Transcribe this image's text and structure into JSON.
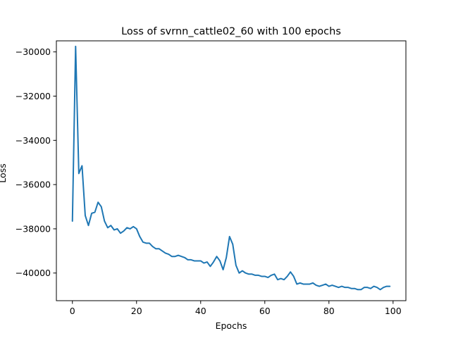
{
  "chart_data": {
    "type": "line",
    "title": "Loss of svrnn_cattle02_60 with 100 epochs",
    "xlabel": "Epochs",
    "ylabel": "Loss",
    "xlim": [
      -5,
      104
    ],
    "ylim": [
      -41250,
      -29500
    ],
    "xticks": [
      0,
      20,
      40,
      60,
      80,
      100
    ],
    "yticks": [
      -40000,
      -38000,
      -36000,
      -34000,
      -32000,
      -30000
    ],
    "xtick_labels": [
      "0",
      "20",
      "40",
      "60",
      "80",
      "100"
    ],
    "ytick_labels": [
      "−40000",
      "−38000",
      "−36000",
      "−34000",
      "−32000",
      "−30000"
    ],
    "grid": false,
    "series": [
      {
        "color": "#1f77b4",
        "x": [
          0,
          1,
          2,
          3,
          4,
          5,
          6,
          7,
          8,
          9,
          10,
          11,
          12,
          13,
          14,
          15,
          16,
          17,
          18,
          19,
          20,
          21,
          22,
          23,
          24,
          25,
          26,
          27,
          28,
          29,
          30,
          31,
          32,
          33,
          34,
          35,
          36,
          37,
          38,
          39,
          40,
          41,
          42,
          43,
          44,
          45,
          46,
          47,
          48,
          49,
          50,
          51,
          52,
          53,
          54,
          55,
          56,
          57,
          58,
          59,
          60,
          61,
          62,
          63,
          64,
          65,
          66,
          67,
          68,
          69,
          70,
          71,
          72,
          73,
          74,
          75,
          76,
          77,
          78,
          79,
          80,
          81,
          82,
          83,
          84,
          85,
          86,
          87,
          88,
          89,
          90,
          91,
          92,
          93,
          94,
          95,
          96,
          97,
          98,
          99
        ],
        "y": [
          -37650,
          -29750,
          -35500,
          -35150,
          -37400,
          -37850,
          -37300,
          -37250,
          -36800,
          -37000,
          -37650,
          -37950,
          -37850,
          -38050,
          -38000,
          -38200,
          -38100,
          -37950,
          -38000,
          -37900,
          -38000,
          -38350,
          -38600,
          -38650,
          -38650,
          -38800,
          -38900,
          -38900,
          -39000,
          -39100,
          -39150,
          -39250,
          -39250,
          -39200,
          -39250,
          -39300,
          -39400,
          -39400,
          -39450,
          -39450,
          -39450,
          -39550,
          -39500,
          -39700,
          -39500,
          -39250,
          -39450,
          -39850,
          -39300,
          -38350,
          -38700,
          -39650,
          -40000,
          -39900,
          -40000,
          -40050,
          -40050,
          -40100,
          -40100,
          -40150,
          -40150,
          -40200,
          -40100,
          -40050,
          -40300,
          -40250,
          -40300,
          -40150,
          -39950,
          -40150,
          -40500,
          -40450,
          -40500,
          -40500,
          -40500,
          -40450,
          -40550,
          -40600,
          -40550,
          -40500,
          -40600,
          -40550,
          -40600,
          -40650,
          -40600,
          -40650,
          -40650,
          -40700,
          -40700,
          -40750,
          -40750,
          -40650,
          -40650,
          -40700,
          -40600,
          -40650,
          -40750,
          -40650,
          -40600,
          -40600
        ]
      }
    ]
  }
}
